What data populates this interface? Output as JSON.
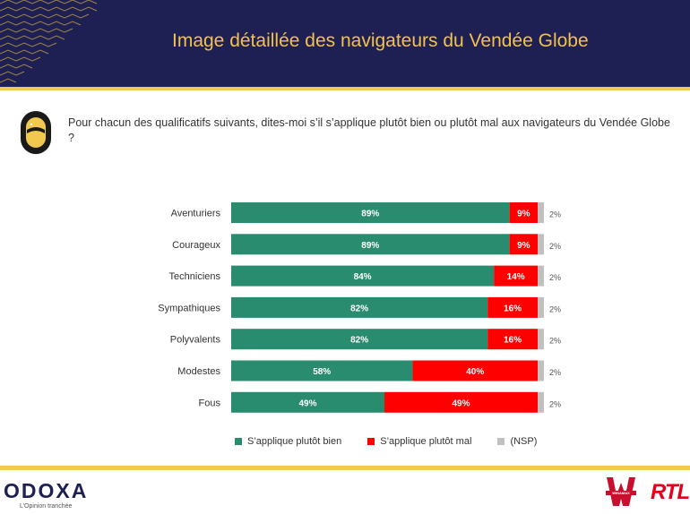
{
  "header": {
    "title": "Image détaillée des navigateurs du Vendée Globe"
  },
  "question": "Pour chacun des qualificatifs suivants, dites-moi s’il s’applique plutôt bien ou plutôt mal aux navigateurs du Vendée Globe ?",
  "colors": {
    "header_bg": "#1e1f52",
    "accent_yellow": "#f2c94c",
    "bien": "#2a8c6e",
    "mal": "#ff0000",
    "nsp": "#c0c0c0"
  },
  "chart_data": {
    "type": "bar",
    "orientation": "horizontal",
    "stacked": true,
    "categories": [
      "Aventuriers",
      "Courageux",
      "Techniciens",
      "Sympathiques",
      "Polyvalents",
      "Modestes",
      "Fous"
    ],
    "series": [
      {
        "name": "S’applique plutôt bien",
        "values": [
          89,
          89,
          84,
          82,
          82,
          58,
          49
        ],
        "labels": [
          "89%",
          "89%",
          "84%",
          "82%",
          "82%",
          "58%",
          "49%"
        ]
      },
      {
        "name": "S’applique plutôt mal",
        "values": [
          9,
          9,
          14,
          16,
          16,
          40,
          49
        ],
        "labels": [
          "9%",
          "9%",
          "14%",
          "16%",
          "16%",
          "40%",
          "49%"
        ]
      },
      {
        "name": "(NSP)",
        "values": [
          2,
          2,
          2,
          2,
          2,
          2,
          2
        ],
        "labels": [
          "2%",
          "2%",
          "2%",
          "2%",
          "2%",
          "2%",
          "2%"
        ]
      }
    ],
    "xlim": [
      0,
      100
    ],
    "grid": false,
    "legend": "bottom"
  },
  "footer": {
    "logo": "ODOXA",
    "tagline": "L’Opinion tranchée",
    "partner_logo_1": "WINAMAX",
    "partner_logo_2": "RTL"
  }
}
